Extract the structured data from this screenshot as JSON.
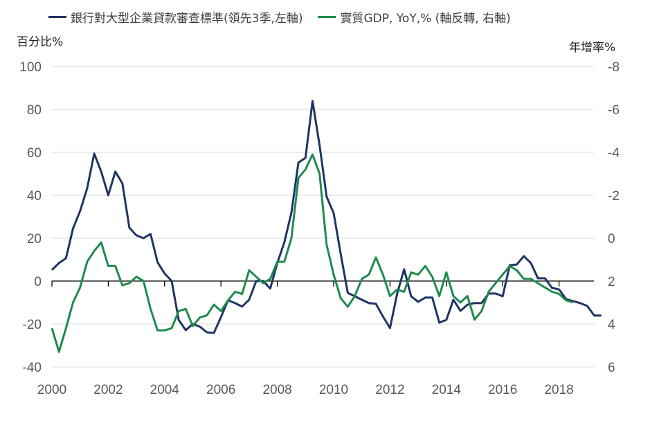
{
  "chart_data": {
    "type": "line",
    "title": "",
    "left_axis": {
      "label": "百分比%",
      "range": [
        -40,
        100
      ],
      "ticks": [
        -40,
        -20,
        0,
        20,
        40,
        60,
        80,
        100
      ]
    },
    "right_axis": {
      "label": "年增率%",
      "range": [
        6,
        -8
      ],
      "inverted": true,
      "ticks": [
        6,
        4,
        2,
        0,
        -2,
        -4,
        -6,
        -8
      ]
    },
    "x_axis": {
      "start": "2000Q1",
      "frequency": "quarterly",
      "tick_labels": [
        "2000",
        "2002",
        "2004",
        "2006",
        "2008",
        "2010",
        "2012",
        "2014",
        "2016",
        "2018"
      ]
    },
    "grid": true,
    "legend_placement": "top",
    "series": [
      {
        "name": "銀行對大型企業貸款審查標準(領先3季,左軸)",
        "axis": "left",
        "color": "#1f3464",
        "start": "2000Q1",
        "values": [
          5.2,
          8.4,
          10.6,
          24.5,
          32.6,
          43.2,
          59.4,
          51.0,
          40.0,
          51.0,
          45.5,
          24.8,
          21.3,
          20.0,
          21.9,
          8.7,
          3.5,
          0,
          -18.1,
          -22.9,
          -20.0,
          -21.3,
          -23.9,
          -24.2,
          -16.8,
          -9.0,
          -10.3,
          -11.9,
          -8.7,
          0,
          0,
          -3.5,
          8.4,
          18.1,
          31.9,
          55.2,
          57.4,
          83.9,
          63.2,
          39.4,
          31.6,
          12.6,
          -5.5,
          -7.1,
          -8.7,
          -10.3,
          -10.6,
          -16.5,
          -21.9,
          -6.1,
          5.5,
          -7.1,
          -9.7,
          -7.7,
          -7.7,
          -19.4,
          -18.1,
          -8.7,
          -13.9,
          -11.0,
          -10.3,
          -10.3,
          -5.8,
          -5.8,
          -7.1,
          7.4,
          7.7,
          11.6,
          8.4,
          1.3,
          1.3,
          -3.2,
          -3.9,
          -8.4,
          -9.4,
          -10.3,
          -11.6,
          -16.1,
          -16.1
        ]
      },
      {
        "name": "實質GDP, YoY,% (軸反轉, 右軸)",
        "axis": "right",
        "color": "#1e8a4e",
        "start": "2000Q1",
        "values": [
          4.2,
          5.3,
          4.2,
          3.0,
          2.3,
          1.1,
          0.6,
          0.2,
          1.3,
          1.3,
          2.2,
          2.1,
          1.8,
          2.0,
          3.3,
          4.3,
          4.3,
          4.2,
          3.4,
          3.3,
          4.1,
          3.7,
          3.6,
          3.1,
          3.4,
          2.9,
          2.5,
          2.6,
          1.5,
          1.8,
          2.1,
          1.9,
          1.1,
          1.1,
          0.0,
          -2.8,
          -3.2,
          -3.9,
          -3.0,
          0.3,
          1.7,
          2.8,
          3.2,
          2.7,
          1.9,
          1.7,
          0.9,
          1.7,
          2.7,
          2.4,
          2.5,
          1.6,
          1.7,
          1.3,
          1.8,
          2.7,
          1.6,
          2.7,
          3.0,
          2.7,
          3.8,
          3.4,
          2.5,
          2.1,
          1.7,
          1.3,
          1.5,
          1.9,
          1.9,
          2.1,
          2.3,
          2.5,
          2.6,
          2.9,
          3.0
        ]
      }
    ]
  }
}
